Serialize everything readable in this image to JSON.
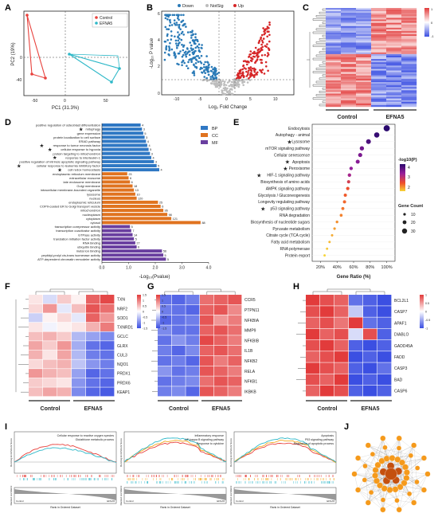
{
  "panels": {
    "A": "A",
    "B": "B",
    "C": "C",
    "D": "D",
    "E": "E",
    "F": "F",
    "G": "G",
    "H": "H",
    "I": "I",
    "J": "J"
  },
  "colors": {
    "control_red": "#e8413c",
    "efna5_cyan": "#2eb8c8",
    "down_blue": "#2a7ab7",
    "up_red": "#d62728",
    "notsig_grey": "#bdbdbd",
    "bp": "#2f78c4",
    "cc": "#e0731f",
    "mf": "#6a3fa0",
    "heat_high": "#e23b3b",
    "heat_low": "#3b4fe2"
  },
  "panelA": {
    "legend": [
      "Control",
      "EFNA5"
    ],
    "xlabel": "PC1 (31.3%)",
    "ylabel": "PC2 (19%)",
    "xticks": [
      "-50",
      "0",
      "50"
    ],
    "yticks": [
      "0",
      "-40"
    ]
  },
  "panelB": {
    "legend": [
      "Down",
      "NotSig",
      "Up"
    ],
    "xlabel": "Log₂ Fold Change",
    "ylabel": "-Log₁₀ P value",
    "xticks": [
      "-10",
      "-5",
      "0",
      "5",
      "10"
    ],
    "yticks": [
      "0",
      "2",
      "4",
      "6"
    ]
  },
  "panelC": {
    "groups": [
      "Control",
      "EFNA5"
    ],
    "scale": [
      "1",
      "0",
      "-1"
    ]
  },
  "panelD": {
    "legend": [
      "BP",
      "CC",
      "MF"
    ],
    "xlabel": "-Log₁₀(Pvalue)",
    "xticks": [
      "0.0",
      "1.0",
      "2.0",
      "3.0",
      "4.0"
    ],
    "xmax": 4.0,
    "terms": [
      {
        "label": "positive regulation of osteoblast differentiation",
        "cat": "BP",
        "value": 1.45,
        "count": "4",
        "star": false
      },
      {
        "label": "mitophagy",
        "cat": "BP",
        "value": 1.5,
        "count": "3",
        "star": true
      },
      {
        "label": "gene expression",
        "cat": "BP",
        "value": 1.55,
        "count": "5",
        "star": false
      },
      {
        "label": "protein localization to cell surface",
        "cat": "BP",
        "value": 1.6,
        "count": "3",
        "star": false
      },
      {
        "label": "ERAD pathway",
        "cat": "BP",
        "value": 1.65,
        "count": "4",
        "star": false
      },
      {
        "label": "response to tumor necrosis factor",
        "cat": "BP",
        "value": 1.7,
        "count": "4",
        "star": true
      },
      {
        "label": "cellular response to hypoxia",
        "cat": "BP",
        "value": 1.75,
        "count": "5",
        "star": true
      },
      {
        "label": "protein targeting to mitochondrion",
        "cat": "BP",
        "value": 1.8,
        "count": "3",
        "star": false
      },
      {
        "label": "response to interleukin-1",
        "cat": "BP",
        "value": 1.85,
        "count": "4",
        "star": true
      },
      {
        "label": "positive regulation of intrinsic apoptotic signaling pathway",
        "cat": "BP",
        "value": 1.95,
        "count": "3",
        "star": false
      },
      {
        "label": "cellular response to leukemia inhibitory factor",
        "cat": "BP",
        "value": 2.05,
        "count": "5",
        "star": true
      },
      {
        "label": "cell redox homeostasis",
        "cat": "BP",
        "value": 2.15,
        "count": "4",
        "star": true
      },
      {
        "label": "endoplasmic reticulum membrane",
        "cat": "CC",
        "value": 0.95,
        "count": "23",
        "star": false
      },
      {
        "label": "extracellular exosome",
        "cat": "CC",
        "value": 1.0,
        "count": "6",
        "star": false
      },
      {
        "label": "late endosome membrane",
        "cat": "CC",
        "value": 1.05,
        "count": "6",
        "star": false
      },
      {
        "label": "Golgi membrane",
        "cat": "CC",
        "value": 1.15,
        "count": "18",
        "star": false
      },
      {
        "label": "intracellular membrane-bounded organelle",
        "cat": "CC",
        "value": 1.2,
        "count": "13",
        "star": false
      },
      {
        "label": "lysosome",
        "cat": "CC",
        "value": 1.25,
        "count": "10",
        "star": false
      },
      {
        "label": "nucleus",
        "cat": "CC",
        "value": 1.3,
        "count": "120",
        "star": false
      },
      {
        "label": "endoplasmic reticulum",
        "cat": "CC",
        "value": 2.1,
        "count": "25",
        "star": false
      },
      {
        "label": "COPII-coated ER to Golgi transport vesicle",
        "cat": "CC",
        "value": 2.2,
        "count": "6",
        "star": false
      },
      {
        "label": "mitochondrion",
        "cat": "CC",
        "value": 2.3,
        "count": "36",
        "star": false
      },
      {
        "label": "nucleoplasm",
        "cat": "CC",
        "value": 2.45,
        "count": "98",
        "star": false
      },
      {
        "label": "cytoplasm",
        "cat": "CC",
        "value": 2.6,
        "count": "121",
        "star": false
      },
      {
        "label": "cytosol",
        "cat": "CC",
        "value": 3.7,
        "count": "88",
        "star": false
      },
      {
        "label": "transcription corepressor activity",
        "cat": "MF",
        "value": 1.05,
        "count": "5",
        "star": false
      },
      {
        "label": "transcription coactivator activity",
        "cat": "MF",
        "value": 1.1,
        "count": "7",
        "star": false
      },
      {
        "label": "GTPase activity",
        "cat": "MF",
        "value": 1.15,
        "count": "14",
        "star": false
      },
      {
        "label": "translation initiation factor activity",
        "cat": "MF",
        "value": 1.2,
        "count": "5",
        "star": false
      },
      {
        "label": "RNA binding",
        "cat": "MF",
        "value": 1.25,
        "count": "27",
        "star": false
      },
      {
        "label": "ubiquitin binding",
        "cat": "MF",
        "value": 1.3,
        "count": "6",
        "star": false
      },
      {
        "label": "metal ion binding",
        "cat": "MF",
        "value": 2.25,
        "count": "56",
        "star": false
      },
      {
        "label": "peptidyl-prolyl cis-trans isomerase activity",
        "cat": "MF",
        "value": 2.3,
        "count": "5",
        "star": false
      },
      {
        "label": "ATP-dependent chromatin remodeler activity",
        "cat": "MF",
        "value": 2.4,
        "count": "5",
        "star": false
      }
    ]
  },
  "panelE": {
    "xlabel": "Gene Ratio (%)",
    "xticks": [
      "20%",
      "40%",
      "60%",
      "80%",
      "100%"
    ],
    "color_title": "-log10(P)",
    "color_ticks": [
      "4",
      "3",
      "2"
    ],
    "size_title": "Gene Count",
    "size_ticks": [
      "10",
      "20",
      "30"
    ],
    "pathways": [
      {
        "label": "Endocytosis",
        "ratio": 100,
        "count": 35,
        "logp": 4.2,
        "star": false
      },
      {
        "label": "Autophagy - animal",
        "ratio": 88,
        "count": 28,
        "logp": 4.1,
        "star": false
      },
      {
        "label": "Lysosome",
        "ratio": 78,
        "count": 24,
        "logp": 3.9,
        "star": true
      },
      {
        "label": "mTOR signaling pathway",
        "ratio": 70,
        "count": 20,
        "logp": 3.6,
        "star": false
      },
      {
        "label": "Cellular senescence",
        "ratio": 68,
        "count": 19,
        "logp": 3.5,
        "star": false
      },
      {
        "label": "Apoptosis",
        "ratio": 65,
        "count": 18,
        "logp": 3.4,
        "star": true
      },
      {
        "label": "Peroxisome",
        "ratio": 57,
        "count": 14,
        "logp": 3.3,
        "star": true
      },
      {
        "label": "HIF-1 signaling pathway",
        "ratio": 55,
        "count": 14,
        "logp": 3.1,
        "star": true
      },
      {
        "label": "Biosynthesis of amino acids",
        "ratio": 54,
        "count": 13,
        "logp": 2.6,
        "star": false
      },
      {
        "label": "AMPK signaling pathway",
        "ratio": 53,
        "count": 13,
        "logp": 2.3,
        "star": false
      },
      {
        "label": "Glycolysis / Gluconeogenesis",
        "ratio": 50,
        "count": 12,
        "logp": 2.2,
        "star": false
      },
      {
        "label": "Longevity regulating pathway",
        "ratio": 49,
        "count": 12,
        "logp": 2.1,
        "star": false
      },
      {
        "label": "p53 signaling pathway",
        "ratio": 47,
        "count": 11,
        "logp": 2.0,
        "star": true
      },
      {
        "label": "RNA degradation",
        "ratio": 45,
        "count": 10,
        "logp": 1.9,
        "star": false
      },
      {
        "label": "Biosynthesis of nucleotide sugars",
        "ratio": 40,
        "count": 8,
        "logp": 1.8,
        "star": false
      },
      {
        "label": "Pyruvate metabolism",
        "ratio": 37,
        "count": 7,
        "logp": 1.7,
        "star": false
      },
      {
        "label": "Citrate cycle (TCA cycle)",
        "ratio": 34,
        "count": 6,
        "logp": 1.6,
        "star": false
      },
      {
        "label": "Fatty acid metabolism",
        "ratio": 31,
        "count": 6,
        "logp": 1.5,
        "star": false
      },
      {
        "label": "RNA polymerase",
        "ratio": 28,
        "count": 5,
        "logp": 1.4,
        "star": false
      },
      {
        "label": "Protein export",
        "ratio": 25,
        "count": 5,
        "logp": 1.3,
        "star": false
      }
    ]
  },
  "panelF": {
    "groups": [
      "Control",
      "EFNA5"
    ],
    "genes": [
      "TXN",
      "NRF2",
      "SOD1",
      "TXNRD1",
      "GCLC",
      "GLRX",
      "CUL3",
      "NQO1",
      "PRDX1",
      "PRDX6",
      "KEAP1"
    ],
    "scale": [
      "1.5",
      "1",
      "0.5",
      "0",
      "-0.5",
      "-1",
      "-1.5"
    ],
    "matrix": [
      [
        0.2,
        -0.3,
        0.4,
        0.1,
        1.2,
        1.4
      ],
      [
        0.3,
        0.8,
        -0.2,
        0.5,
        1.3,
        1.1
      ],
      [
        -0.4,
        0.1,
        0.3,
        -0.2,
        1.2,
        0.8
      ],
      [
        0.2,
        -0.1,
        0.1,
        0.2,
        0.6,
        1.0
      ],
      [
        0.5,
        0.6,
        0.4,
        -0.6,
        -0.8,
        -1.0
      ],
      [
        0.7,
        0.4,
        0.8,
        -0.7,
        -1.2,
        -1.3
      ],
      [
        0.6,
        0.2,
        0.7,
        -0.6,
        -1.1,
        -1.2
      ],
      [
        0.3,
        0.5,
        0.6,
        -0.5,
        -0.9,
        -1.1
      ],
      [
        0.8,
        0.6,
        0.5,
        -0.8,
        -1.3,
        -1.2
      ],
      [
        0.4,
        0.3,
        0.2,
        -0.9,
        -1.2,
        -1.3
      ],
      [
        0.5,
        0.7,
        0.6,
        -1.0,
        -1.3,
        -1.4
      ]
    ]
  },
  "panelG": {
    "groups": [
      "Control",
      "EFNA5"
    ],
    "genes": [
      "CCR5",
      "PTPN11",
      "NFKBIA",
      "MMP9",
      "NFKBIB",
      "IL1B",
      "NFKB2",
      "RELA",
      "NFKB1",
      "IKBKB"
    ],
    "scale": [
      "1.5",
      "1",
      "0.5",
      "0",
      "-0.5",
      "-1",
      "-1.5"
    ],
    "matrix": [
      [
        -1.2,
        -1.3,
        -1.1,
        1.1,
        1.2,
        1.3
      ],
      [
        -1.1,
        -1.2,
        -1.3,
        1.2,
        1.3,
        0.9
      ],
      [
        -1.3,
        -1.2,
        -1.1,
        1.3,
        0.8,
        1.0
      ],
      [
        -1.0,
        -1.2,
        -1.2,
        1.2,
        1.3,
        1.1
      ],
      [
        -1.2,
        -0.9,
        -1.1,
        1.4,
        1.2,
        1.0
      ],
      [
        -1.1,
        -1.3,
        -1.0,
        1.2,
        1.3,
        1.1
      ],
      [
        -1.2,
        -1.1,
        -1.3,
        1.3,
        1.0,
        1.2
      ],
      [
        -0.9,
        -1.2,
        -1.1,
        1.3,
        1.2,
        1.0
      ],
      [
        -1.2,
        -1.1,
        -1.0,
        1.1,
        1.3,
        1.2
      ],
      [
        -1.1,
        -1.0,
        -1.3,
        1.3,
        1.2,
        1.0
      ]
    ]
  },
  "panelH": {
    "groups": [
      "Control",
      "EFNA5"
    ],
    "genes": [
      "BCL2L1",
      "CASP7",
      "APAF1",
      "DIABLO",
      "GADD45A",
      "FADD",
      "CASP3",
      "BAD",
      "CASP6"
    ],
    "scale": [
      "1",
      "0.5",
      "0",
      "-0.5",
      "-1"
    ],
    "matrix": [
      [
        1.0,
        0.9,
        0.8,
        -0.8,
        -0.9,
        -1.0
      ],
      [
        0.9,
        1.0,
        0.8,
        -0.3,
        -0.9,
        -1.0
      ],
      [
        0.8,
        0.9,
        0.7,
        1.0,
        -0.8,
        -0.9
      ],
      [
        1.0,
        0.8,
        0.9,
        -0.2,
        0.9,
        -0.9
      ],
      [
        0.9,
        1.0,
        0.8,
        -0.9,
        -1.0,
        -0.9
      ],
      [
        0.8,
        0.9,
        1.0,
        -1.0,
        -0.9,
        -1.0
      ],
      [
        1.0,
        0.9,
        0.8,
        -0.9,
        -1.0,
        -0.8
      ],
      [
        0.9,
        0.8,
        1.0,
        -1.0,
        -0.9,
        -1.0
      ],
      [
        0.8,
        1.0,
        0.9,
        -0.9,
        -1.0,
        -0.9
      ]
    ]
  },
  "panelI": {
    "plots": [
      {
        "legend": [
          "Cellular response to reactive oxygen species",
          "Glutathione metabolic process"
        ],
        "colors": [
          "#e8413c",
          "#2eb8c8"
        ]
      },
      {
        "legend": [
          "Inflammatory response",
          "NF-kappa B signaling pathway",
          "Response to cytokine"
        ],
        "colors": [
          "#e8413c",
          "#f2a81d",
          "#2eb8c8"
        ]
      },
      {
        "legend": [
          "Apoptosis",
          "P53 signaling pathway",
          "Regulation of apoptotic process"
        ],
        "colors": [
          "#e8413c",
          "#f2a81d",
          "#2eb8c8"
        ]
      }
    ],
    "ylabel_top": "Running Enrichment Score",
    "ylabel_bottom": "Ranked List Metric",
    "xlabel": "Rank in Ordered Dataset",
    "pos_label": "Control",
    "neg_label": "EFNA5"
  },
  "panelJ": {
    "node_color": "#f59a1c",
    "hub_color": "#c4500f"
  }
}
